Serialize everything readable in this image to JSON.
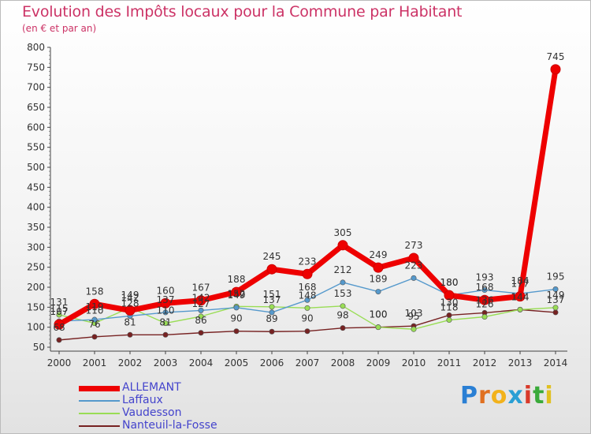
{
  "header": {
    "title": "Evolution des Impôts locaux pour la Commune par Habitant",
    "subtitle": "(en € et par an)"
  },
  "brand": {
    "letters": [
      {
        "ch": "P",
        "color": "#2a7fd4"
      },
      {
        "ch": "r",
        "color": "#e07020"
      },
      {
        "ch": "o",
        "color": "#f2b21b"
      },
      {
        "ch": "x",
        "color": "#2a9fd4"
      },
      {
        "ch": "i",
        "color": "#d83a2a"
      },
      {
        "ch": "t",
        "color": "#3aaa3a"
      },
      {
        "ch": "i",
        "color": "#e0c020"
      }
    ]
  },
  "chart_data": {
    "type": "line",
    "title": "Evolution des Impôts locaux pour la Commune par Habitant",
    "subtitle": "(en € et par an)",
    "xlabel": "",
    "ylabel": "",
    "x": [
      "2000",
      "2001",
      "2002",
      "2003",
      "2004",
      "2005",
      "2006",
      "2007",
      "2008",
      "2009",
      "2010",
      "2011",
      "2012",
      "2013",
      "2014"
    ],
    "ylim": [
      50,
      800
    ],
    "yticks": [
      50,
      100,
      150,
      200,
      250,
      300,
      350,
      400,
      450,
      500,
      550,
      600,
      650,
      700,
      750,
      800
    ],
    "grid": false,
    "legend_position": "bottom-left",
    "series": [
      {
        "name": "ALLEMANT",
        "color": "#ee0000",
        "values": [
          107,
          158,
          142,
          160,
          167,
          188,
          245,
          233,
          305,
          249,
          273,
          180,
          168,
          177,
          745
        ],
        "labels": [
          "107",
          "158",
          "142",
          "160",
          "167",
          "188",
          "245",
          "233",
          "305",
          "249",
          "273",
          "180",
          "168",
          "177",
          "745"
        ]
      },
      {
        "name": "Laffaux",
        "color": "#5599cc",
        "values": [
          115,
          119,
          128,
          137,
          142,
          149,
          137,
          168,
          212,
          189,
          223,
          180,
          193,
          184,
          195
        ],
        "labels": [
          "115",
          "119",
          "128",
          "137",
          "142",
          "149",
          "137",
          "168",
          "212",
          "189",
          "223",
          "180",
          "193",
          "184",
          "195"
        ]
      },
      {
        "name": "Vaudesson",
        "color": "#99dd55",
        "values": [
          131,
          110,
          149,
          110,
          127,
          152,
          151,
          148,
          153,
          100,
          95,
          118,
          126,
          144,
          149
        ],
        "labels": [
          "131",
          "110",
          "149",
          "110",
          "127",
          "152",
          "151",
          "148",
          "153",
          "100",
          "95",
          "118",
          "126",
          "144",
          "149"
        ]
      },
      {
        "name": "Nanteuil-la-Fosse",
        "color": "#772222",
        "values": [
          68,
          76,
          81,
          81,
          86,
          90,
          89,
          90,
          98,
          100,
          103,
          130,
          136,
          144,
          137
        ],
        "labels": [
          "68",
          "76",
          "81",
          "81",
          "86",
          "90",
          "89",
          "90",
          "98",
          "100",
          "103",
          "130",
          "136",
          "144",
          "137"
        ]
      }
    ]
  }
}
